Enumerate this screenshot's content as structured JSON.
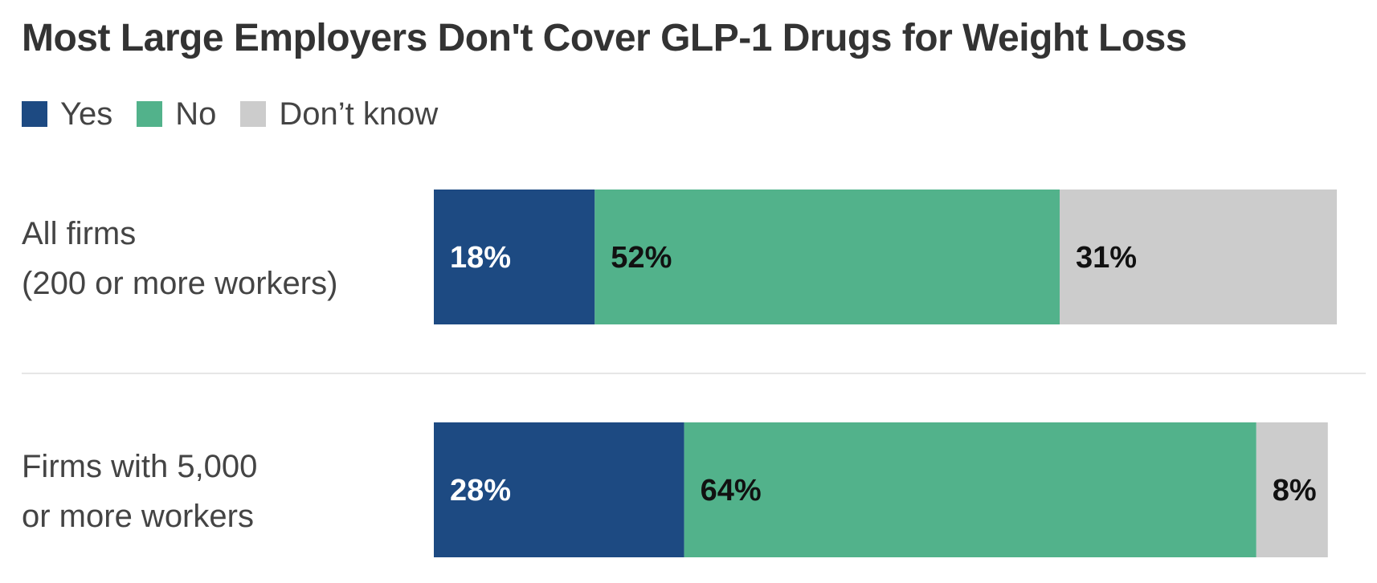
{
  "chart_data": {
    "type": "bar",
    "orientation": "horizontal",
    "stacked": true,
    "title": "Most Large Employers Don't Cover GLP-1 Drugs for Weight Loss",
    "categories": [
      [
        "All firms",
        "(200 or more workers)"
      ],
      [
        "Firms with 5,000",
        "or more workers"
      ]
    ],
    "series": [
      {
        "name": "Yes",
        "values": [
          18,
          28
        ],
        "labels": [
          "18%",
          "28%"
        ],
        "color": "#1d4a82",
        "label_color": "#ffffff"
      },
      {
        "name": "No",
        "values": [
          52,
          64
        ],
        "labels": [
          "52%",
          "64%"
        ],
        "color": "#52b28b",
        "label_color": "#111111"
      },
      {
        "name": "Don’t know",
        "values": [
          31,
          8
        ],
        "labels": [
          "31%",
          "8%"
        ],
        "color": "#cccccc",
        "label_color": "#111111"
      }
    ],
    "xlim": [
      0,
      101
    ],
    "legend_position": "top-left",
    "grid": false
  }
}
